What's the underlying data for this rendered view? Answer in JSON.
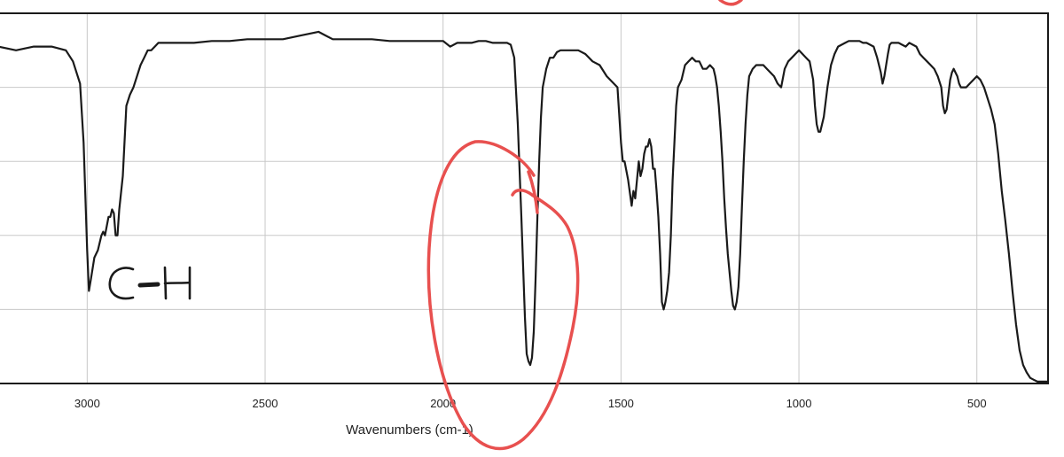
{
  "chart_data": {
    "type": "line",
    "title": "",
    "xlabel": "Wavenumbers (cm-1)",
    "ylabel": "",
    "xlim": [
      3250,
      300
    ],
    "x_reversed": true,
    "ylim": [
      0,
      100
    ],
    "grid": true,
    "xticks": [
      3000,
      2500,
      2000,
      1500,
      1000,
      500
    ],
    "series": [
      {
        "color": "#1a1a1a",
        "x": [
          3250,
          3200,
          3150,
          3100,
          3060,
          3040,
          3020,
          3010,
          3000,
          2995,
          2990,
          2980,
          2970,
          2960,
          2955,
          2950,
          2940,
          2935,
          2930,
          2925,
          2920,
          2915,
          2910,
          2900,
          2890,
          2880,
          2870,
          2860,
          2850,
          2840,
          2830,
          2820,
          2810,
          2800,
          2780,
          2750,
          2700,
          2650,
          2600,
          2550,
          2500,
          2450,
          2400,
          2350,
          2330,
          2310,
          2300,
          2250,
          2200,
          2150,
          2100,
          2050,
          2000,
          1980,
          1960,
          1940,
          1920,
          1900,
          1880,
          1860,
          1840,
          1820,
          1810,
          1800,
          1790,
          1780,
          1770,
          1765,
          1760,
          1755,
          1750,
          1745,
          1740,
          1735,
          1730,
          1725,
          1720,
          1710,
          1700,
          1690,
          1680,
          1670,
          1650,
          1620,
          1600,
          1580,
          1560,
          1540,
          1520,
          1510,
          1500,
          1495,
          1490,
          1480,
          1470,
          1465,
          1460,
          1455,
          1450,
          1445,
          1440,
          1435,
          1430,
          1425,
          1420,
          1415,
          1410,
          1405,
          1400,
          1395,
          1390,
          1385,
          1380,
          1375,
          1370,
          1365,
          1360,
          1355,
          1350,
          1345,
          1340,
          1330,
          1320,
          1310,
          1300,
          1290,
          1280,
          1270,
          1260,
          1250,
          1240,
          1235,
          1230,
          1225,
          1220,
          1215,
          1210,
          1205,
          1200,
          1195,
          1190,
          1185,
          1180,
          1175,
          1170,
          1165,
          1160,
          1155,
          1150,
          1145,
          1140,
          1130,
          1120,
          1110,
          1100,
          1090,
          1080,
          1070,
          1060,
          1050,
          1040,
          1030,
          1020,
          1010,
          1000,
          990,
          980,
          970,
          960,
          955,
          950,
          945,
          940,
          930,
          920,
          910,
          900,
          890,
          880,
          870,
          860,
          850,
          840,
          830,
          820,
          810,
          800,
          790,
          780,
          770,
          765,
          760,
          755,
          750,
          745,
          740,
          730,
          720,
          710,
          700,
          690,
          680,
          670,
          660,
          650,
          640,
          630,
          620,
          610,
          600,
          595,
          590,
          585,
          580,
          575,
          570,
          565,
          560,
          555,
          550,
          545,
          540,
          530,
          520,
          510,
          500,
          490,
          480,
          470,
          460,
          450,
          440,
          430,
          420,
          410,
          400,
          390,
          380,
          370,
          360,
          350,
          340,
          330,
          320,
          310,
          300
        ],
        "y": [
          91,
          90,
          91,
          91,
          90,
          87,
          81,
          65,
          36,
          25,
          28,
          34,
          36,
          40,
          41,
          40,
          45,
          45,
          47,
          46,
          40,
          40,
          47,
          56,
          75,
          78,
          80,
          83,
          86,
          88,
          90,
          90,
          91,
          92,
          92,
          92,
          92,
          92.5,
          92.5,
          93,
          93,
          93,
          94,
          95,
          94,
          93,
          93,
          93,
          93,
          92.5,
          92.5,
          92.5,
          92.5,
          91,
          92,
          92,
          92,
          92.5,
          92.5,
          92,
          92,
          92,
          91.5,
          88,
          70,
          45,
          18,
          8,
          6,
          5,
          7,
          14,
          28,
          45,
          60,
          72,
          80,
          85,
          88,
          88,
          89.5,
          90,
          90,
          90,
          89,
          87,
          86,
          83,
          81,
          80,
          65,
          60,
          60,
          55,
          48,
          52,
          50,
          55,
          60,
          56,
          58,
          62,
          64,
          64,
          66,
          64,
          58,
          58,
          52,
          45,
          35,
          22,
          20,
          22,
          25,
          30,
          40,
          55,
          65,
          75,
          80,
          82,
          86,
          87,
          88,
          87,
          87,
          85,
          85,
          86,
          85,
          83,
          80,
          75,
          68,
          60,
          50,
          42,
          35,
          30,
          25,
          21,
          20,
          22,
          26,
          35,
          48,
          60,
          70,
          78,
          83,
          85,
          86,
          86,
          86,
          85,
          84,
          83,
          81,
          80,
          85,
          87,
          88,
          89,
          90,
          89,
          88,
          87,
          82,
          75,
          70,
          68,
          68,
          72,
          80,
          86,
          89,
          91,
          91.5,
          92,
          92.5,
          92.5,
          92.5,
          92.5,
          92,
          92,
          91.5,
          91,
          88,
          84,
          81,
          83,
          86,
          89,
          91.5,
          92,
          92,
          92,
          91.5,
          91,
          92,
          91.5,
          91,
          89,
          88,
          87,
          86,
          85,
          83,
          80,
          75,
          73,
          74,
          78,
          82,
          84,
          85,
          84,
          83,
          81,
          80,
          80,
          80,
          81,
          82,
          83,
          82,
          80,
          77,
          74,
          70,
          62,
          52,
          44,
          35,
          25,
          16,
          9,
          5,
          3,
          1.5,
          1,
          0.5,
          0.5,
          0.5,
          0.5
        ]
      }
    ],
    "annotations": [
      {
        "type": "handwritten-text",
        "text": "C-H",
        "near_x": 2950,
        "near_y": 20,
        "color": "#1a1a1a"
      },
      {
        "type": "hand-drawn-circle",
        "color": "#e8504f",
        "around_x": 1770
      }
    ]
  }
}
